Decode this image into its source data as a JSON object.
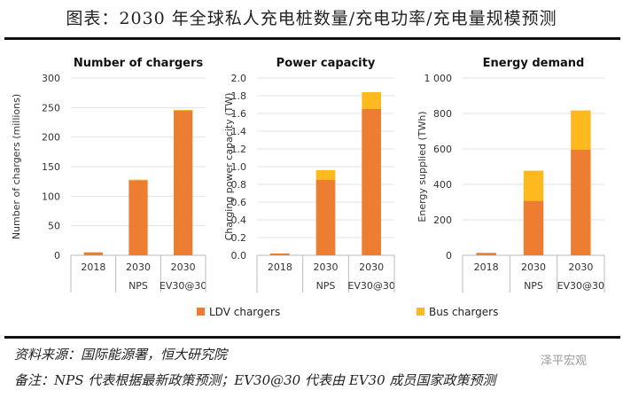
{
  "header": {
    "title": "图表：2030 年全球私人充电桩数量/充电功率/充电量规模预测"
  },
  "footer": {
    "source": "资料来源：国际能源署，恒大研究院",
    "note": "备注：NPS 代表根据最新政策预测；EV30@30 代表由 EV30 成员国家政策预测",
    "watermark": "泽平宏观"
  },
  "colors": {
    "ldv": "#ED7D31",
    "bus": "#FDB91E",
    "grid": "#e3e3e3"
  },
  "chart_data": [
    {
      "type": "bar",
      "stacked": true,
      "title": "Number of chargers",
      "ylabel": "Number of chargers (millions)",
      "ylim": [
        0,
        300
      ],
      "yticks": [
        "0",
        "50",
        "100",
        "150",
        "200",
        "250",
        "300"
      ],
      "categories": [
        [
          "2018",
          ""
        ],
        [
          "2030",
          "NPS"
        ],
        [
          "2030",
          "EV30@30"
        ]
      ],
      "series": [
        {
          "name": "LDV chargers",
          "values": [
            5,
            127,
            245
          ]
        },
        {
          "name": "Bus chargers",
          "values": [
            0,
            1,
            1
          ]
        }
      ]
    },
    {
      "type": "bar",
      "stacked": true,
      "title": "Power capacity",
      "ylabel": "Charging power capacity (TW)",
      "ylim": [
        0,
        2.0
      ],
      "yticks": [
        "0.0",
        "0.2",
        "0.4",
        "0.6",
        "0.8",
        "1.0",
        "1.2",
        "1.4",
        "1.6",
        "1.8",
        "2.0"
      ],
      "categories": [
        [
          "2018",
          ""
        ],
        [
          "2030",
          "NPS"
        ],
        [
          "2030",
          "EV30@30"
        ]
      ],
      "series": [
        {
          "name": "LDV chargers",
          "values": [
            0.02,
            0.85,
            1.65
          ]
        },
        {
          "name": "Bus chargers",
          "values": [
            0.0,
            0.11,
            0.19
          ]
        }
      ]
    },
    {
      "type": "bar",
      "stacked": true,
      "title": "Energy demand",
      "ylabel": "Energy supplied (TWh)",
      "ylim": [
        0,
        1000
      ],
      "yticks": [
        "0",
        "200",
        "400",
        "600",
        "800",
        "1 000"
      ],
      "categories": [
        [
          "2018",
          ""
        ],
        [
          "2030",
          "NPS"
        ],
        [
          "2030",
          "EV30@30"
        ]
      ],
      "series": [
        {
          "name": "LDV chargers",
          "values": [
            12,
            307,
            595
          ]
        },
        {
          "name": "Bus chargers",
          "values": [
            3,
            170,
            222
          ]
        }
      ]
    }
  ],
  "legend": [
    "LDV chargers",
    "Bus chargers"
  ]
}
